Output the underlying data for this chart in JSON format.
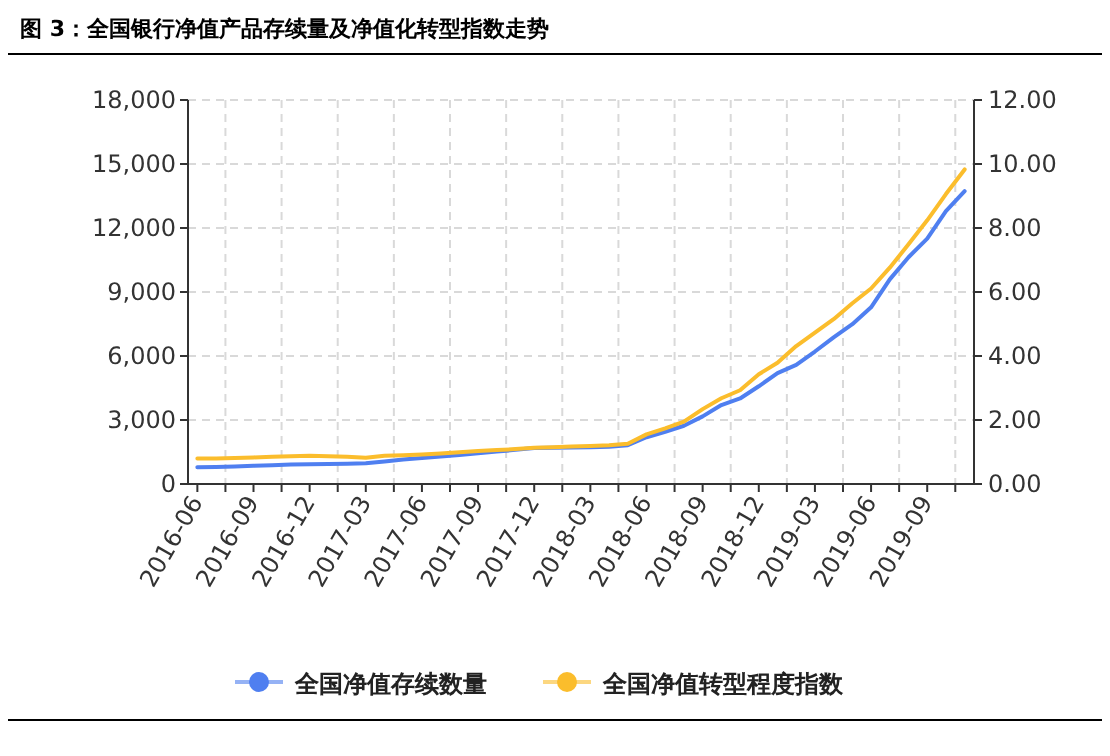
{
  "chart_data": {
    "type": "line",
    "title": "图 3：全国银行净值产品存续量及净值化转型指数走势",
    "categories": [
      "2016-06",
      null,
      null,
      "2016-09",
      null,
      null,
      "2016-12",
      null,
      null,
      "2017-03",
      null,
      null,
      "2017-06",
      null,
      null,
      "2017-09",
      null,
      null,
      "2017-12",
      null,
      null,
      "2018-03",
      null,
      null,
      "2018-06",
      null,
      null,
      "2018-09",
      null,
      null,
      "2018-12",
      null,
      null,
      "2019-03",
      null,
      null,
      "2019-06",
      null,
      null,
      "2019-09",
      null,
      null
    ],
    "series": [
      {
        "name": "全国净值存续数量",
        "color": "#4f7ff0",
        "values": [
          790,
          800,
          820,
          850,
          880,
          910,
          930,
          940,
          950,
          970,
          1060,
          1150,
          1220,
          1290,
          1360,
          1440,
          1520,
          1600,
          1690,
          1700,
          1710,
          1720,
          1750,
          1820,
          2190,
          2450,
          2730,
          3170,
          3700,
          4010,
          4580,
          5200,
          5580,
          6210,
          6870,
          7490,
          8280,
          9590,
          10630,
          11500,
          12790,
          13730
        ]
      },
      {
        "name": "全国净值转型程度指数",
        "color": "#fbbd2c",
        "axis": "y2",
        "values": [
          0.8,
          0.8,
          0.81,
          0.83,
          0.85,
          0.87,
          0.88,
          0.87,
          0.85,
          0.82,
          0.88,
          0.9,
          0.92,
          0.95,
          0.99,
          1.03,
          1.06,
          1.09,
          1.13,
          1.15,
          1.17,
          1.19,
          1.21,
          1.26,
          1.55,
          1.74,
          1.95,
          2.34,
          2.68,
          2.93,
          3.43,
          3.79,
          4.31,
          4.73,
          5.15,
          5.65,
          6.11,
          6.76,
          7.49,
          8.24,
          9.06,
          9.83
        ]
      }
    ],
    "ylim": [
      0,
      18000
    ],
    "yticks": [
      0,
      {
        "value": 3000,
        "label": "3,000"
      },
      {
        "value": 6000,
        "label": "6,000"
      },
      {
        "value": 9000,
        "label": "9,000"
      },
      {
        "value": 12000,
        "label": "12,000"
      },
      {
        "value": 15000,
        "label": "15,000"
      },
      {
        "value": 18000,
        "label": "18,000"
      }
    ],
    "y2lim": [
      0,
      12
    ],
    "y2ticks": [
      {
        "value": 0,
        "label": "0.00"
      },
      {
        "value": 2,
        "label": "2.00"
      },
      {
        "value": 4,
        "label": "4.00"
      },
      {
        "value": 6,
        "label": "6.00"
      },
      {
        "value": 8,
        "label": "8.00"
      },
      {
        "value": 10,
        "label": "10.00"
      },
      {
        "value": 12,
        "label": "12.00"
      }
    ],
    "grid": true,
    "legend": "bottom"
  }
}
